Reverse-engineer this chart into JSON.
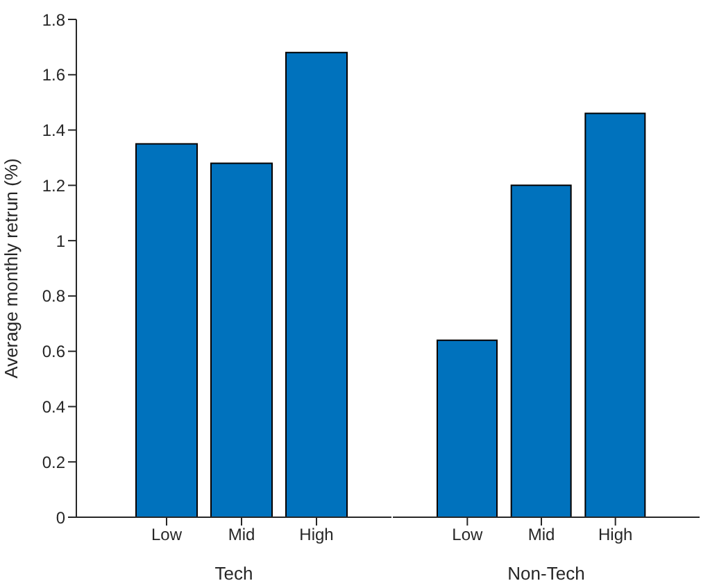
{
  "chart_data": [
    {
      "type": "bar",
      "xlabel": "Tech",
      "ylabel": "Average monthly retrun (%)",
      "categories": [
        "Low",
        "Mid",
        "High"
      ],
      "values": [
        1.35,
        1.28,
        1.68
      ],
      "color": "#0072bd",
      "ylim": [
        0,
        1.8
      ],
      "yticks": [
        0,
        0.2,
        0.4,
        0.6,
        0.8,
        1,
        1.2,
        1.4,
        1.6,
        1.8
      ],
      "grid": false,
      "legend": false
    },
    {
      "type": "bar",
      "xlabel": "Non-Tech",
      "categories": [
        "Low",
        "Mid",
        "High"
      ],
      "values": [
        0.64,
        1.2,
        1.46
      ],
      "color": "#0072bd",
      "ylim": [
        0,
        1.8
      ],
      "yticks": [
        0,
        0.2,
        0.4,
        0.6,
        0.8,
        1,
        1.2,
        1.4,
        1.6,
        1.8
      ],
      "tick_labels": "x",
      "grid": false,
      "legend": false
    }
  ]
}
